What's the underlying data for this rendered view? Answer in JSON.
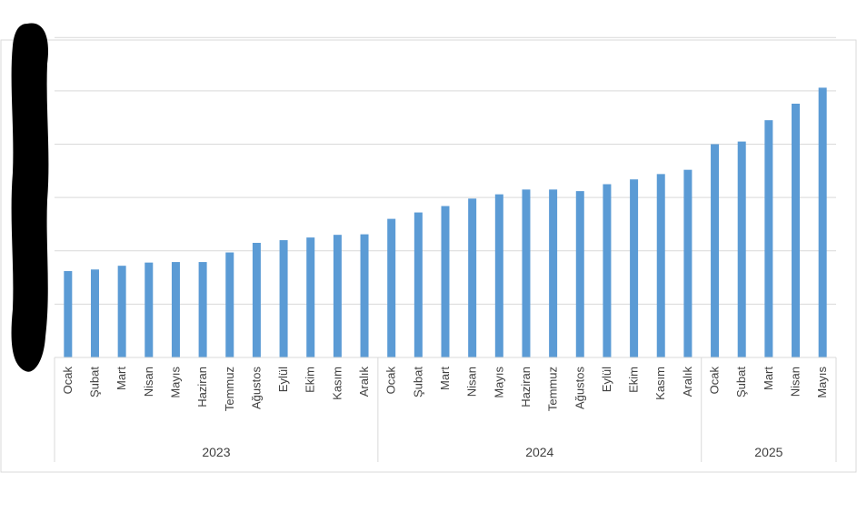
{
  "chart_data": {
    "type": "bar",
    "title": "",
    "xlabel": "",
    "ylabel": "",
    "ylim": [
      0,
      6.5
    ],
    "grid": true,
    "legend": "none",
    "bar_color": "#5b9bd5",
    "grid_color": "#d9d9d9",
    "y_tick_labels_obscured": true,
    "groups": [
      {
        "label": "2023",
        "categories": [
          "Ocak",
          "Şubat",
          "Mart",
          "Nisan",
          "Mayıs",
          "Haziran",
          "Temmuz",
          "Ağustos",
          "Eylül",
          "Ekim",
          "Kasım",
          "Aralık"
        ]
      },
      {
        "label": "2024",
        "categories": [
          "Ocak",
          "Şubat",
          "Mart",
          "Nisan",
          "Mayıs",
          "Haziran",
          "Temmuz",
          "Ağustos",
          "Eylül",
          "Ekim",
          "Kasım",
          "Aralık"
        ]
      },
      {
        "label": "2025",
        "categories": [
          "Ocak",
          "Şubat",
          "Mart",
          "Nisan",
          "Mayıs"
        ]
      }
    ],
    "values": [
      1.62,
      1.65,
      1.72,
      1.78,
      1.79,
      1.79,
      1.97,
      2.15,
      2.2,
      2.25,
      2.3,
      2.31,
      2.6,
      2.72,
      2.84,
      2.98,
      3.06,
      3.15,
      3.15,
      3.12,
      3.25,
      3.34,
      3.44,
      3.52,
      4.0,
      4.05,
      4.45,
      4.76,
      5.06
    ]
  }
}
